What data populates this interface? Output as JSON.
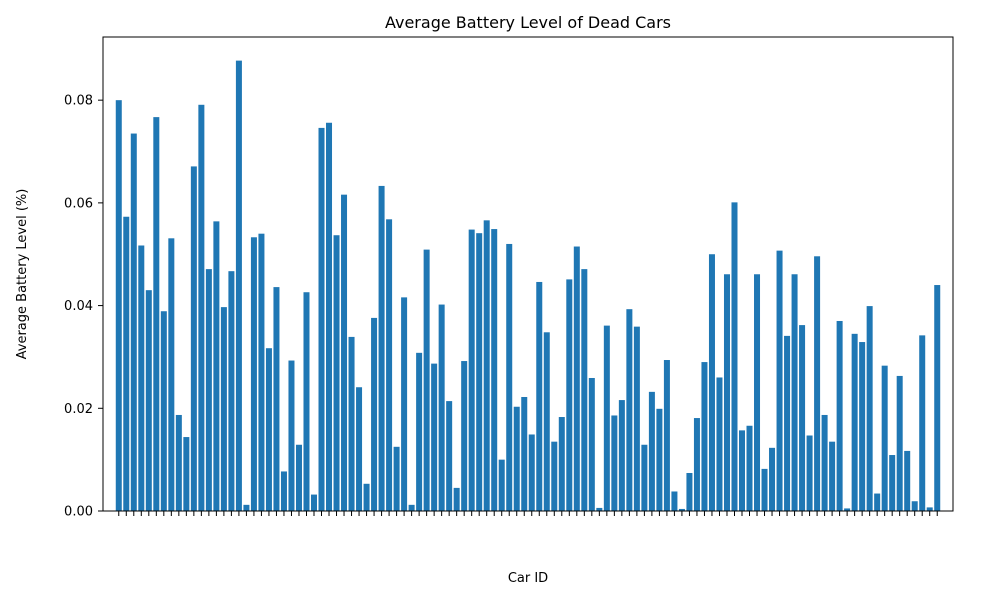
{
  "chart_data": {
    "type": "bar",
    "title": "Average Battery Level of Dead Cars",
    "xlabel": "Car ID",
    "ylabel": "Average Battery Level (%)",
    "color": "#1f77b4",
    "categories": [
      null,
      null,
      null,
      null,
      null,
      null,
      null,
      null,
      null,
      null,
      null,
      null,
      null,
      null,
      null,
      null,
      null,
      null,
      null,
      null,
      null,
      null,
      null,
      null,
      null,
      null,
      null,
      null,
      null,
      null,
      null,
      null,
      null,
      null,
      null,
      null,
      null,
      null,
      null,
      null,
      null,
      null,
      null,
      null,
      null,
      null,
      null,
      null,
      null,
      null,
      null,
      null,
      null,
      null,
      null,
      null,
      null,
      null,
      null,
      null,
      null,
      null,
      null,
      null,
      null,
      null,
      null,
      null,
      null,
      null,
      null,
      null,
      null,
      null,
      null,
      null,
      null,
      null,
      null,
      null,
      null,
      null,
      null,
      null,
      null,
      null,
      null,
      null,
      null,
      null,
      null,
      null,
      null,
      null,
      null,
      null,
      null,
      null,
      null,
      null,
      null,
      null,
      null,
      null,
      null,
      null,
      null,
      null,
      null,
      null
    ],
    "values": [
      0.08,
      0.0573,
      0.0735,
      0.0517,
      0.043,
      0.0767,
      0.0389,
      0.0531,
      0.0187,
      0.0144,
      0.0671,
      0.0791,
      0.0471,
      0.0564,
      0.0397,
      0.0467,
      0.0877,
      0.0012,
      0.0533,
      0.054,
      0.0317,
      0.0436,
      0.0077,
      0.0293,
      0.0129,
      0.0426,
      0.0032,
      0.0746,
      0.0756,
      0.0537,
      0.0616,
      0.0339,
      0.0241,
      0.0053,
      0.0376,
      0.0633,
      0.0568,
      0.0125,
      0.0416,
      0.0012,
      0.0308,
      0.0509,
      0.0287,
      0.0402,
      0.0214,
      0.0045,
      0.0292,
      0.0548,
      0.0541,
      0.0566,
      0.0549,
      0.01,
      0.052,
      0.0203,
      0.0222,
      0.0149,
      0.0446,
      0.0348,
      0.0135,
      0.0183,
      0.0451,
      0.0515,
      0.0471,
      0.0259,
      0.0006,
      0.0361,
      0.0186,
      0.0216,
      0.0393,
      0.0359,
      0.0129,
      0.0232,
      0.0199,
      0.0294,
      0.0038,
      0.0004,
      0.0074,
      0.0181,
      0.029,
      0.05,
      0.026,
      0.0461,
      0.0601,
      0.0157,
      0.0166,
      0.0461,
      0.0082,
      0.0123,
      0.0507,
      0.0341,
      0.0461,
      0.0362,
      0.0147,
      0.0496,
      0.0187,
      0.0135,
      0.037,
      0.0005,
      0.0345,
      0.0329,
      0.0399,
      0.0034,
      0.0283,
      0.0109,
      0.0263,
      0.0117,
      0.0019,
      0.0342,
      0.0007,
      0.044
    ],
    "ylim": [
      0,
      0.0923
    ],
    "yticks": [
      {
        "value": 0,
        "label": "0.00"
      },
      {
        "value": 0.02,
        "label": "0.02"
      },
      {
        "value": 0.04,
        "label": "0.04"
      },
      {
        "value": 0.06,
        "label": "0.06"
      },
      {
        "value": 0.08,
        "label": "0.08"
      }
    ],
    "grid": false
  }
}
